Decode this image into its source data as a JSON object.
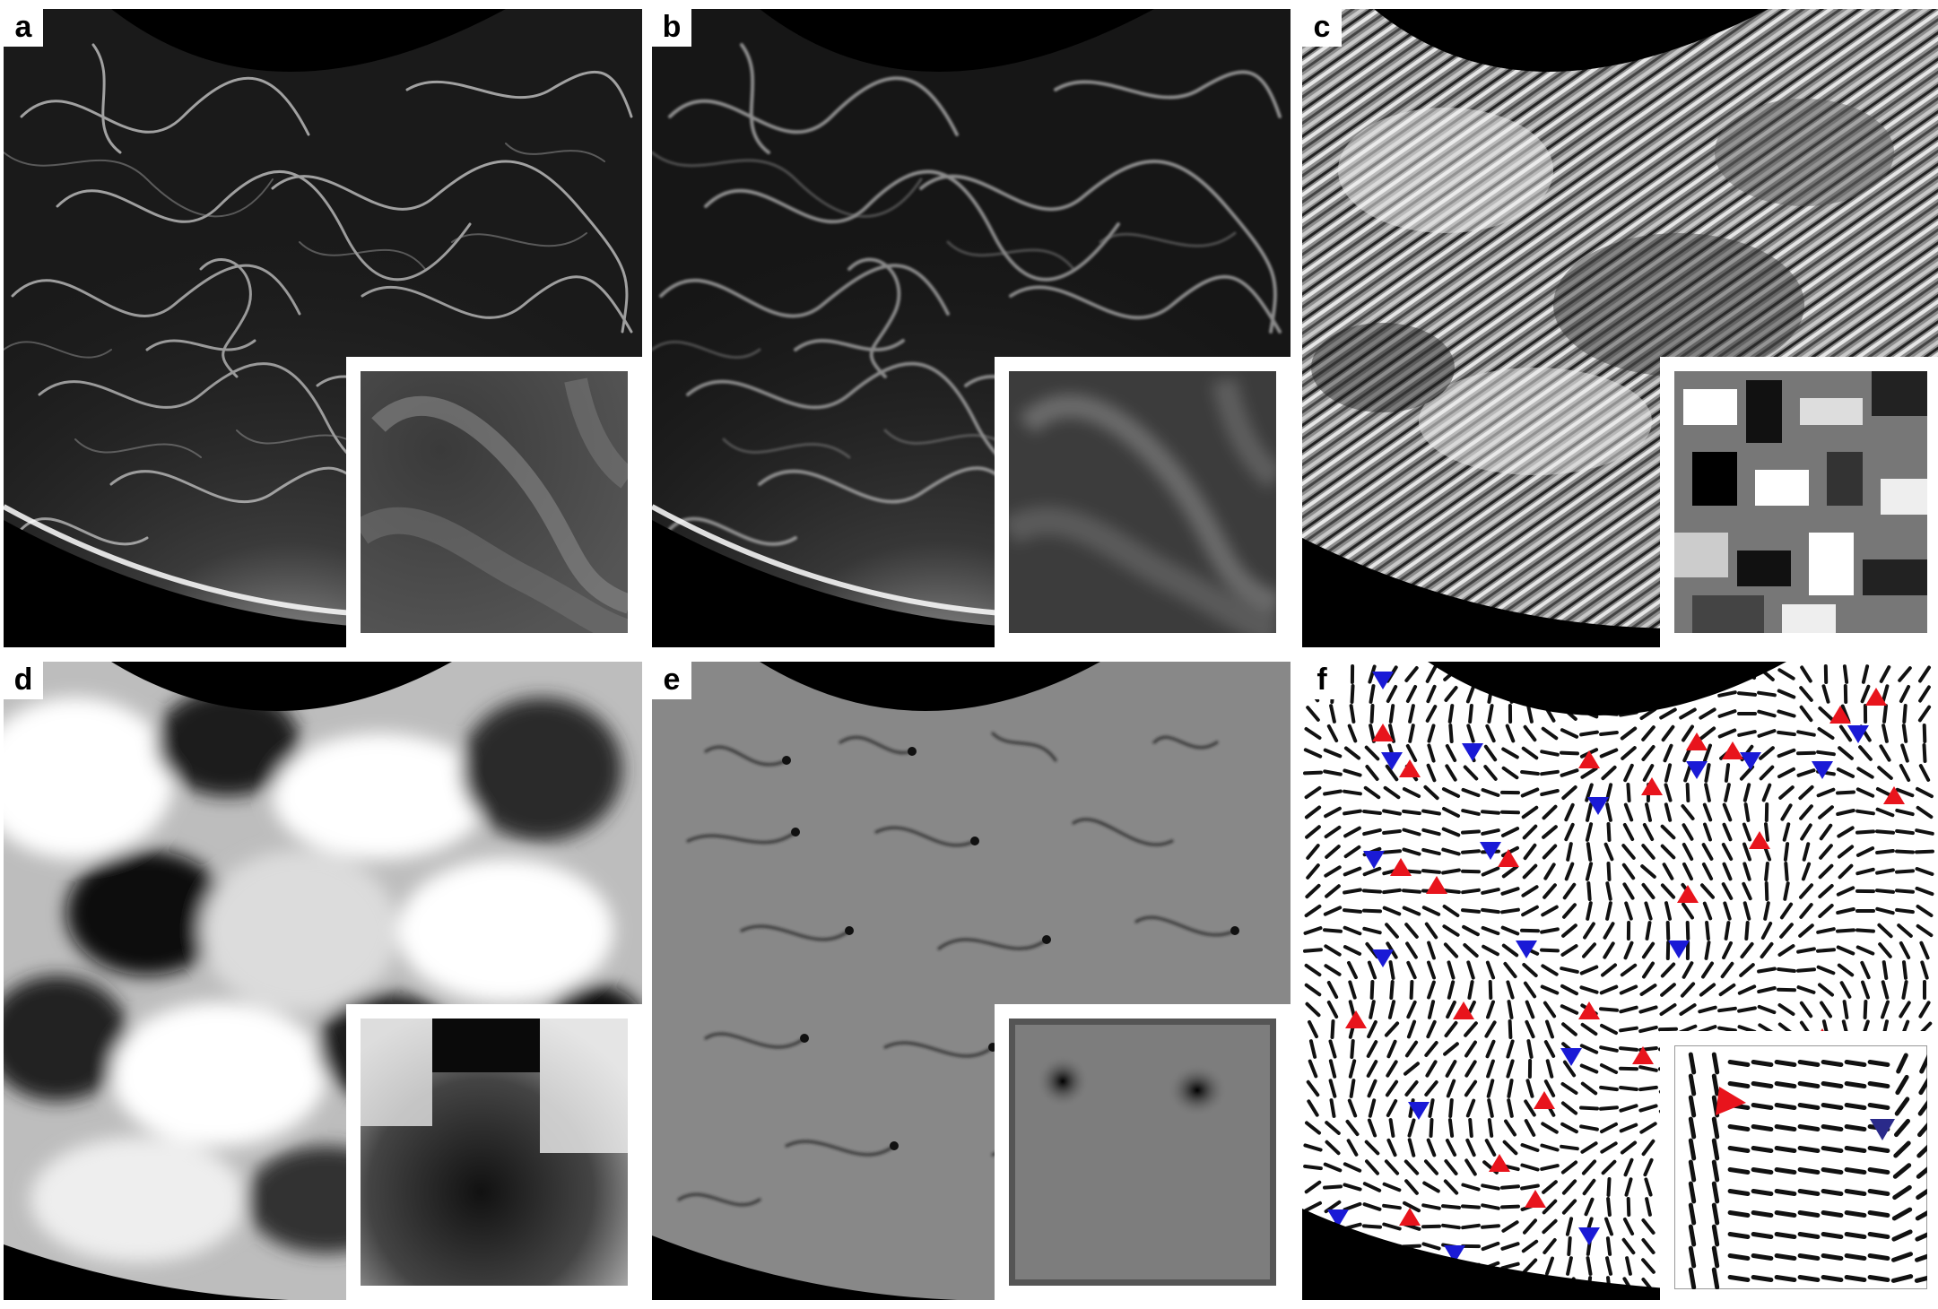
{
  "figure": {
    "panels": [
      {
        "id": "a",
        "label": "a",
        "description_kind": "raw-fluorescence"
      },
      {
        "id": "b",
        "label": "b",
        "description_kind": "filtered-fluorescence"
      },
      {
        "id": "c",
        "label": "c",
        "description_kind": "raw-orientation-field"
      },
      {
        "id": "d",
        "label": "d",
        "description_kind": "smoothed-orientation-field"
      },
      {
        "id": "e",
        "label": "e",
        "description_kind": "order-parameter-map"
      },
      {
        "id": "f",
        "label": "f",
        "description_kind": "director-field-with-defects"
      }
    ],
    "colors": {
      "background": "#000000",
      "gutter": "#ffffff",
      "positive_defect": "#e8141c",
      "negative_defect": "#1a1ad6",
      "inset_negative_defect": "#2a2a8a",
      "order_field": "#888888"
    }
  }
}
